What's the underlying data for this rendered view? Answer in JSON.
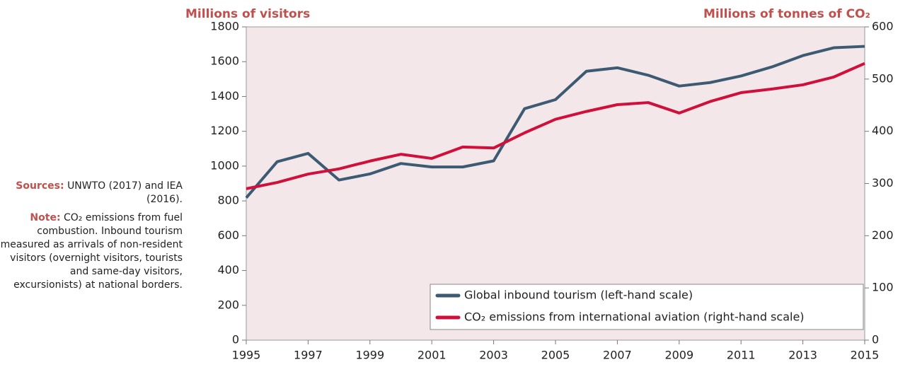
{
  "chart_data": {
    "type": "line",
    "y_label": "Millions of visitors",
    "y2_label": "Millions of tonnes of CO₂",
    "x": [
      1995,
      1996,
      1997,
      1998,
      1999,
      2000,
      2001,
      2002,
      2003,
      2004,
      2005,
      2006,
      2007,
      2008,
      2009,
      2010,
      2011,
      2012,
      2013,
      2014,
      2015
    ],
    "series": [
      {
        "name": "Global inbound tourism (left-hand scale)",
        "color": "#3d5a73",
        "values": [
          818,
          1025,
          1073,
          920,
          955,
          1015,
          995,
          995,
          1030,
          1330,
          1382,
          1545,
          1565,
          1522,
          1460,
          1480,
          1518,
          1570,
          1635,
          1680,
          1688
        ]
      },
      {
        "name": "CO₂ emissions from international aviation (right-hand scale)",
        "color": "#d0103a",
        "axis": "y2",
        "values": [
          290,
          302,
          318,
          328,
          343,
          356,
          348,
          370,
          368,
          397,
          423,
          438,
          451,
          455,
          435,
          457,
          474,
          481,
          489,
          504,
          530
        ]
      }
    ],
    "xlim": [
      1995,
      2015
    ],
    "xticks": [
      1995,
      1997,
      1999,
      2001,
      2003,
      2005,
      2007,
      2009,
      2011,
      2013,
      2015
    ],
    "ylim": [
      0,
      1800
    ],
    "yticks": [
      0,
      200,
      400,
      600,
      800,
      1000,
      1200,
      1400,
      1600,
      1800
    ],
    "y2lim": [
      0,
      600
    ],
    "y2ticks": [
      0,
      100,
      200,
      300,
      400,
      500,
      600
    ],
    "legend": "lower right",
    "plot_background": "#f3e7ea",
    "annotations": [
      {
        "label": "Sources:",
        "text": "UNWTO (2017) and IEA (2016)."
      },
      {
        "label": "Note:",
        "text": "CO₂ emissions from fuel combustion. Inbound tourism measured as arrivals of non-resident visitors (overnight visitors, tourists and same-day visitors, excursionists) at national borders."
      }
    ]
  }
}
